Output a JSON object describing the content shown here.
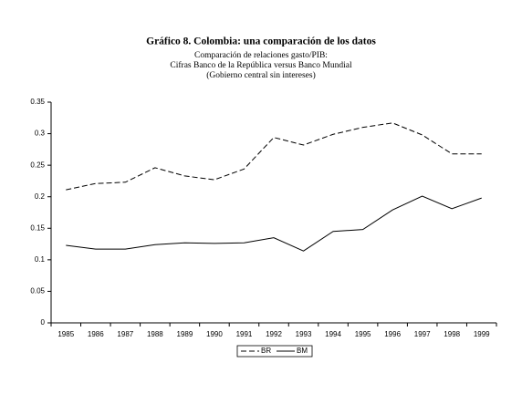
{
  "chart_data": {
    "type": "line",
    "title": "Gráfico 8. Colombia: una comparación de los datos",
    "subtitle": [
      "Comparación de relaciones gasto/PIB:",
      "Cifras Banco de la República versus  Banco Mundial",
      "(Gobierno central sin intereses)"
    ],
    "categories": [
      "1985",
      "1986",
      "1987",
      "1988",
      "1989",
      "1990",
      "1991",
      "1992",
      "1993",
      "1994",
      "1995",
      "1996",
      "1997",
      "1998",
      "1999"
    ],
    "series": [
      {
        "name": "BR",
        "color": "#000000",
        "line_style": "dashed",
        "values": [
          0.211,
          0.221,
          0.223,
          0.246,
          0.233,
          0.227,
          0.244,
          0.294,
          0.282,
          0.299,
          0.31,
          0.317,
          0.298,
          0.268,
          0.268
        ]
      },
      {
        "name": "BM",
        "color": "#000000",
        "line_style": "solid",
        "values": [
          0.123,
          0.117,
          0.117,
          0.124,
          0.127,
          0.126,
          0.127,
          0.135,
          0.114,
          0.145,
          0.148,
          0.179,
          0.201,
          0.181,
          0.198
        ]
      }
    ],
    "ylim": [
      0,
      0.35
    ],
    "yticks": [
      0,
      0.05,
      0.1,
      0.15,
      0.2,
      0.25,
      0.3,
      0.35
    ],
    "grid": false,
    "legend": "bottom"
  }
}
